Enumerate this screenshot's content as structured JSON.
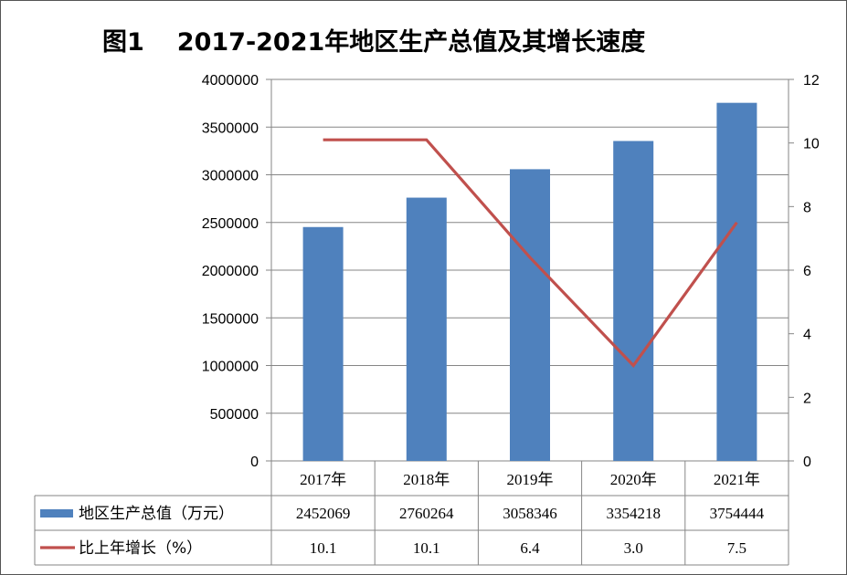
{
  "figure": {
    "label": "图1",
    "title": "2017-2021年地区生产总值及其增长速度"
  },
  "colors": {
    "bar": "#4F81BD",
    "line": "#C0504D",
    "grid": "#868686"
  },
  "chart_data": {
    "type": "bar",
    "title": "2017-2021年地区生产总值及其增长速度",
    "categories": [
      "2017年",
      "2018年",
      "2019年",
      "2020年",
      "2021年"
    ],
    "series": [
      {
        "name": "地区生产总值（万元）",
        "type": "bar",
        "axis": "left",
        "values": [
          2452069,
          2760264,
          3058346,
          3354218,
          3754444
        ]
      },
      {
        "name": "比上年增长（%）",
        "type": "line",
        "axis": "right",
        "values": [
          10.1,
          10.1,
          6.4,
          3.0,
          7.5
        ]
      }
    ],
    "y_left": {
      "ylim": [
        0,
        4000000
      ],
      "ticks": [
        "0",
        "500000",
        "1000000",
        "1500000",
        "2000000",
        "2500000",
        "3000000",
        "3500000",
        "4000000"
      ]
    },
    "y_right": {
      "ylim": [
        0,
        12
      ],
      "ticks": [
        "0",
        "2",
        "4",
        "6",
        "8",
        "10",
        "12"
      ]
    },
    "data_table": {
      "rows": [
        {
          "legend": "地区生产总值（万元）",
          "cells": [
            "2452069",
            "2760264",
            "3058346",
            "3354218",
            "3754444"
          ]
        },
        {
          "legend": "比上年增长（%）",
          "cells": [
            "10.1",
            "10.1",
            "6.4",
            "3.0",
            "7.5"
          ]
        }
      ]
    },
    "grid": true,
    "legend_position": "data-table"
  }
}
